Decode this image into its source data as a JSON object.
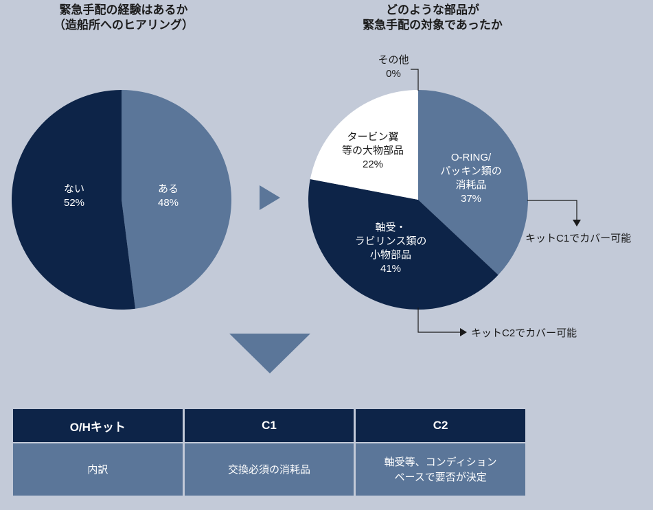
{
  "left_chart_title": "緊急手配の経験はあるか\n（造船所へのヒアリング）",
  "right_chart_title": "どのような部品が\n緊急手配の対象であったか",
  "chart_data": [
    {
      "type": "pie",
      "title": "緊急手配の経験はあるか（造船所へのヒアリング）",
      "slices": [
        {
          "label": "ある",
          "value": 48,
          "color": "#5b7699"
        },
        {
          "label": "ない",
          "value": 52,
          "color": "#0d2448"
        }
      ]
    },
    {
      "type": "pie",
      "title": "どのような部品が緊急手配の対象であったか",
      "slices": [
        {
          "label": "O-RING/\nパッキン類の\n消耗品",
          "value": 37,
          "color": "#5b7699",
          "text_color": "#ffffff"
        },
        {
          "label": "軸受・\nラビリンス類の\n小物部品",
          "value": 41,
          "color": "#0d2448",
          "text_color": "#ffffff"
        },
        {
          "label": "タービン翼\n等の大物部品",
          "value": 22,
          "color": "#ffffff",
          "text_color": "#1a1a1a"
        },
        {
          "label": "その他",
          "value": 0,
          "color": "#ffffff",
          "text_color": "#1a1a1a"
        }
      ],
      "annotations": [
        "キットC1でカバー可能",
        "キットC2でカバー可能"
      ]
    }
  ],
  "table": {
    "headers": [
      "O/Hキット",
      "C1",
      "C2"
    ],
    "row": [
      "内訳",
      "交換必須の消耗品",
      "軸受等、コンディション\nベースで要否が決定"
    ]
  },
  "colors": {
    "background": "#c3cad8",
    "dark_navy": "#0d2448",
    "steel_blue": "#5b7699"
  }
}
